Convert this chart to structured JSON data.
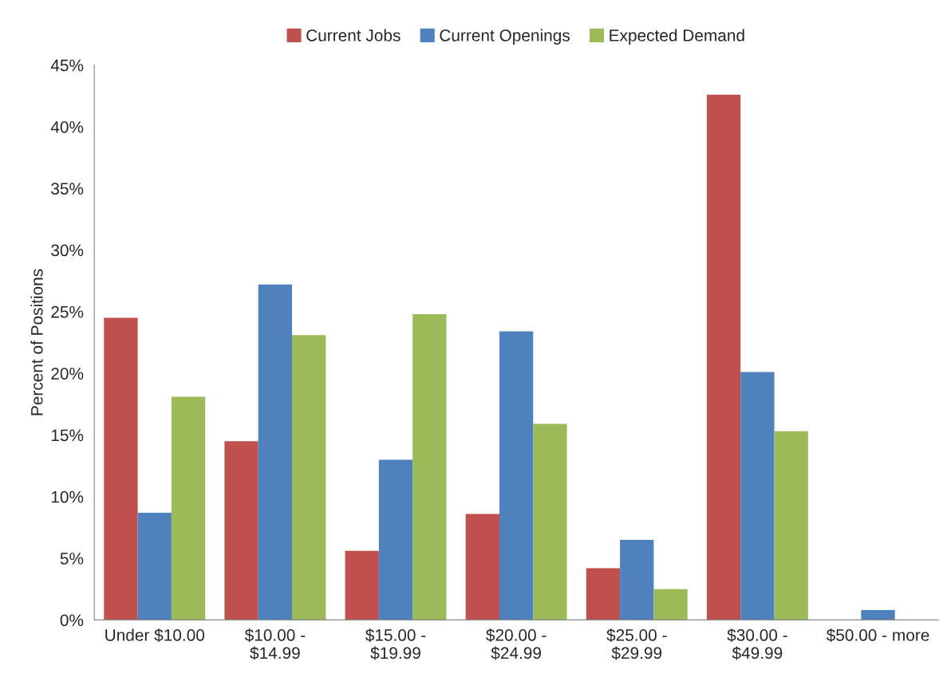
{
  "chart_data": {
    "type": "bar",
    "ylabel": "Percent of Positions",
    "categories": [
      "Under $10.00",
      "$10.00 -\n$14.99",
      "$15.00 -\n$19.99",
      "$20.00 -\n$24.99",
      "$25.00 -\n$29.99",
      "$30.00 -\n$49.99",
      "$50.00 - more"
    ],
    "series": [
      {
        "name": "Current Jobs",
        "color": "#c0504d",
        "values": [
          24.5,
          14.5,
          5.6,
          8.6,
          4.2,
          42.6,
          null
        ]
      },
      {
        "name": "Current Openings",
        "color": "#4f81bd",
        "values": [
          8.7,
          27.2,
          13.0,
          23.4,
          6.5,
          20.1,
          0.8
        ]
      },
      {
        "name": "Expected Demand",
        "color": "#9bbb59",
        "values": [
          18.1,
          23.1,
          24.8,
          15.9,
          2.5,
          15.3,
          null
        ]
      }
    ],
    "ylim": [
      0,
      45
    ],
    "yticks": [
      {
        "value": 0,
        "label": "0%"
      },
      {
        "value": 5,
        "label": "5%"
      },
      {
        "value": 10,
        "label": "10%"
      },
      {
        "value": 15,
        "label": "15%"
      },
      {
        "value": 20,
        "label": "20%"
      },
      {
        "value": 25,
        "label": "25%"
      },
      {
        "value": 30,
        "label": "30%"
      },
      {
        "value": 35,
        "label": "35%"
      },
      {
        "value": 40,
        "label": "40%"
      },
      {
        "value": 45,
        "label": "45%"
      }
    ],
    "grid": false,
    "legend": "top"
  }
}
